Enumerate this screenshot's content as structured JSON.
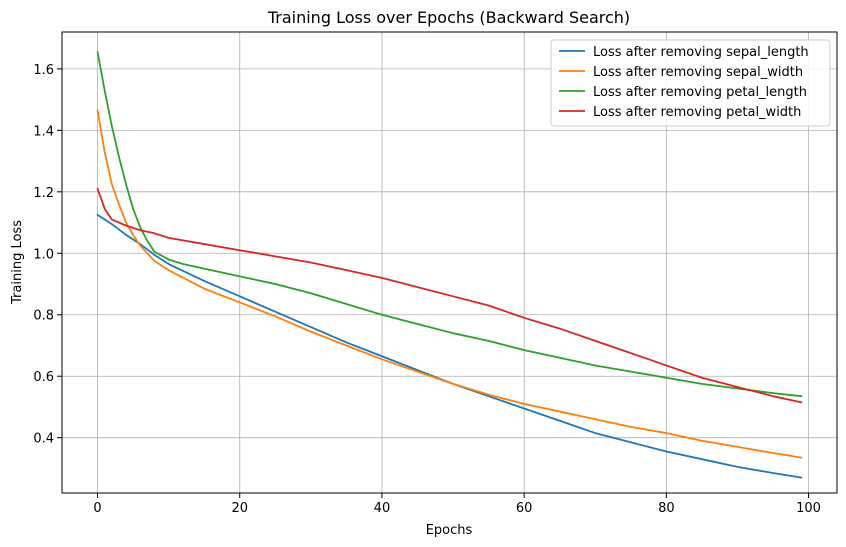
{
  "chart_data": {
    "type": "line",
    "title": "Training Loss over Epochs (Backward Search)",
    "xlabel": "Epochs",
    "ylabel": "Training Loss",
    "xlim": [
      -5,
      104
    ],
    "ylim": [
      0.22,
      1.72
    ],
    "xticks": [
      0,
      20,
      40,
      60,
      80,
      100
    ],
    "yticks": [
      0.4,
      0.6,
      0.8,
      1.0,
      1.2,
      1.4,
      1.6
    ],
    "ytick_labels": [
      "0.4",
      "0.6",
      "0.8",
      "1.0",
      "1.2",
      "1.4",
      "1.6"
    ],
    "grid": true,
    "legend_position": "top-right",
    "series": [
      {
        "name": "Loss after removing sepal_length",
        "color": "#1f77b4",
        "points": [
          [
            0,
            1.125
          ],
          [
            2,
            1.095
          ],
          [
            4,
            1.06
          ],
          [
            6,
            1.03
          ],
          [
            8,
            0.995
          ],
          [
            10,
            0.965
          ],
          [
            15,
            0.91
          ],
          [
            20,
            0.86
          ],
          [
            25,
            0.81
          ],
          [
            30,
            0.76
          ],
          [
            35,
            0.71
          ],
          [
            40,
            0.665
          ],
          [
            45,
            0.62
          ],
          [
            50,
            0.575
          ],
          [
            55,
            0.535
          ],
          [
            60,
            0.495
          ],
          [
            65,
            0.455
          ],
          [
            70,
            0.415
          ],
          [
            75,
            0.385
          ],
          [
            80,
            0.355
          ],
          [
            85,
            0.33
          ],
          [
            90,
            0.305
          ],
          [
            95,
            0.285
          ],
          [
            99,
            0.27
          ]
        ]
      },
      {
        "name": "Loss after removing sepal_width",
        "color": "#ff7f0e",
        "points": [
          [
            0,
            1.465
          ],
          [
            1,
            1.33
          ],
          [
            2,
            1.225
          ],
          [
            3,
            1.16
          ],
          [
            4,
            1.1
          ],
          [
            5,
            1.06
          ],
          [
            6,
            1.025
          ],
          [
            8,
            0.975
          ],
          [
            10,
            0.945
          ],
          [
            15,
            0.885
          ],
          [
            20,
            0.84
          ],
          [
            25,
            0.795
          ],
          [
            30,
            0.745
          ],
          [
            35,
            0.7
          ],
          [
            40,
            0.655
          ],
          [
            45,
            0.615
          ],
          [
            50,
            0.575
          ],
          [
            55,
            0.54
          ],
          [
            60,
            0.51
          ],
          [
            65,
            0.485
          ],
          [
            70,
            0.46
          ],
          [
            75,
            0.435
          ],
          [
            80,
            0.415
          ],
          [
            85,
            0.39
          ],
          [
            90,
            0.37
          ],
          [
            95,
            0.35
          ],
          [
            99,
            0.335
          ]
        ]
      },
      {
        "name": "Loss after removing petal_length",
        "color": "#2ca02c",
        "points": [
          [
            0,
            1.655
          ],
          [
            1,
            1.53
          ],
          [
            2,
            1.415
          ],
          [
            3,
            1.315
          ],
          [
            4,
            1.225
          ],
          [
            5,
            1.145
          ],
          [
            6,
            1.085
          ],
          [
            7,
            1.04
          ],
          [
            8,
            1.005
          ],
          [
            10,
            0.98
          ],
          [
            12,
            0.965
          ],
          [
            15,
            0.95
          ],
          [
            20,
            0.925
          ],
          [
            25,
            0.9
          ],
          [
            30,
            0.87
          ],
          [
            35,
            0.835
          ],
          [
            40,
            0.8
          ],
          [
            45,
            0.77
          ],
          [
            50,
            0.74
          ],
          [
            55,
            0.715
          ],
          [
            60,
            0.685
          ],
          [
            65,
            0.66
          ],
          [
            70,
            0.635
          ],
          [
            75,
            0.615
          ],
          [
            80,
            0.595
          ],
          [
            85,
            0.575
          ],
          [
            90,
            0.56
          ],
          [
            95,
            0.545
          ],
          [
            99,
            0.535
          ]
        ]
      },
      {
        "name": "Loss after removing petal_width",
        "color": "#d62728",
        "points": [
          [
            0,
            1.21
          ],
          [
            1,
            1.145
          ],
          [
            2,
            1.11
          ],
          [
            4,
            1.09
          ],
          [
            6,
            1.075
          ],
          [
            8,
            1.065
          ],
          [
            10,
            1.05
          ],
          [
            15,
            1.03
          ],
          [
            20,
            1.01
          ],
          [
            25,
            0.99
          ],
          [
            30,
            0.97
          ],
          [
            35,
            0.945
          ],
          [
            40,
            0.92
          ],
          [
            45,
            0.89
          ],
          [
            50,
            0.86
          ],
          [
            55,
            0.83
          ],
          [
            60,
            0.79
          ],
          [
            65,
            0.755
          ],
          [
            70,
            0.715
          ],
          [
            75,
            0.675
          ],
          [
            80,
            0.635
          ],
          [
            85,
            0.595
          ],
          [
            90,
            0.565
          ],
          [
            95,
            0.535
          ],
          [
            99,
            0.515
          ]
        ]
      }
    ]
  }
}
